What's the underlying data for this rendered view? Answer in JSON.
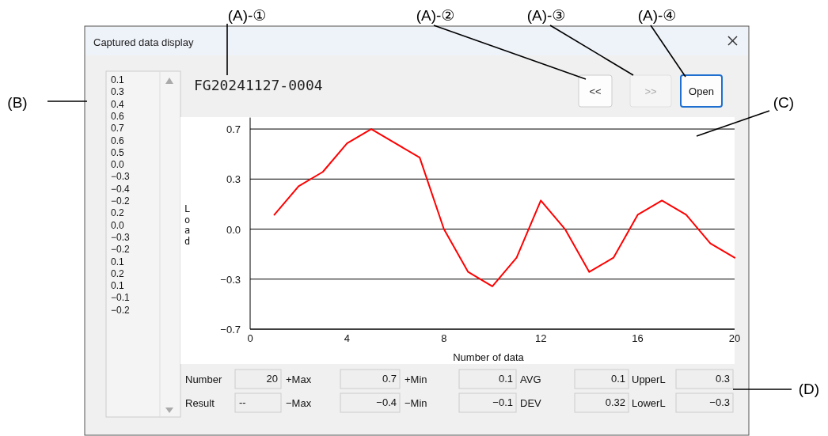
{
  "chart_data": {
    "type": "line",
    "title": "Captured data display",
    "subtitle": "FG20241127-0004",
    "xlabel": "Number of data",
    "ylabel": "Load",
    "x": [
      1,
      2,
      3,
      4,
      5,
      6,
      7,
      8,
      9,
      10,
      11,
      12,
      13,
      14,
      15,
      16,
      17,
      18,
      19,
      20
    ],
    "series": [
      {
        "color": "#ff0000",
        "values": [
          0.1,
          0.3,
          0.4,
          0.6,
          0.7,
          0.6,
          0.5,
          0.0,
          -0.3,
          -0.4,
          -0.2,
          0.2,
          0.0,
          -0.3,
          -0.2,
          0.1,
          0.2,
          0.1,
          -0.1,
          -0.2
        ]
      }
    ],
    "xlim": [
      0,
      20
    ],
    "xticks": [
      0,
      4,
      8,
      12,
      16,
      20
    ],
    "ylim": [
      -0.7,
      0.78
    ],
    "yticks": [
      {
        "value": -0.7,
        "label": "−0.7"
      },
      {
        "value": -0.35,
        "label": "−0.3"
      },
      {
        "value": 0,
        "label": "0.0"
      },
      {
        "value": 0.35,
        "label": "0.3"
      },
      0.7
    ],
    "grid": "y",
    "annotations": [
      "(A)-①",
      "(A)-②",
      "(A)-③",
      "(A)-④",
      "(B)",
      "(C)",
      "(D)",
      "<<",
      ">>",
      "Open",
      "Number",
      "20",
      "+Max",
      "0.7",
      "+Min",
      "0.1",
      "AVG",
      "0.1",
      "UpperL",
      "0.3",
      "Result",
      "--",
      "−Max",
      "−0.4",
      "−Min",
      "−0.1",
      "DEV",
      "0.32",
      "LowerL",
      "−0.3",
      "0.1",
      "0.3",
      "0.4",
      "0.6",
      "0.7",
      "0.6",
      "0.5",
      "0.0",
      "−0.3",
      "−0.4",
      "−0.2",
      "0.2",
      "0.0",
      "−0.3",
      "−0.2",
      "0.1",
      "0.2",
      "0.1",
      "−0.1",
      "−0.2"
    ]
  }
}
